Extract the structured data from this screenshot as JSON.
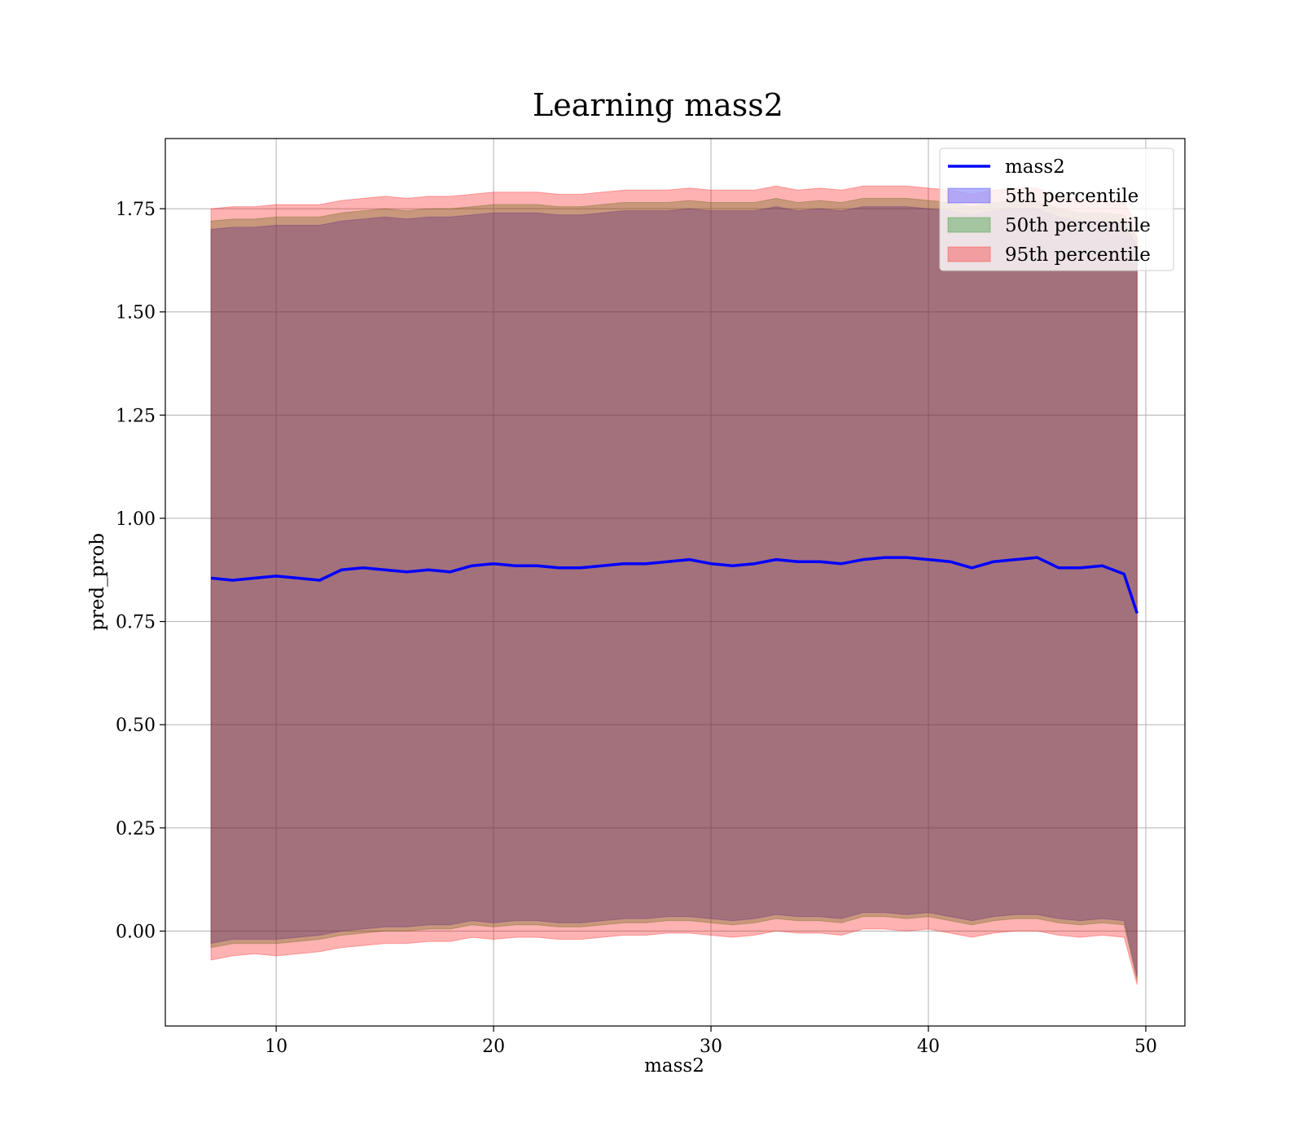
{
  "chart_data": {
    "type": "line",
    "title": "Learning mass2",
    "xlabel": "mass2",
    "ylabel": "pred_prob",
    "xlim": [
      4.9,
      51.8
    ],
    "ylim": [
      -0.23,
      1.92
    ],
    "x_ticks": [
      10,
      20,
      30,
      40,
      50
    ],
    "x_tick_labels": [
      "10",
      "20",
      "30",
      "40",
      "50"
    ],
    "y_ticks": [
      0.0,
      0.25,
      0.5,
      0.75,
      1.0,
      1.25,
      1.5,
      1.75
    ],
    "y_tick_labels": [
      "0.00",
      "0.25",
      "0.50",
      "0.75",
      "1.00",
      "1.25",
      "1.50",
      "1.75"
    ],
    "grid": true,
    "legend_position": "upper right",
    "x": [
      7.0,
      8.0,
      9.0,
      10.0,
      11.0,
      12.0,
      13.0,
      14.0,
      15.0,
      16.0,
      17.0,
      18.0,
      19.0,
      20.0,
      21.0,
      22.0,
      23.0,
      24.0,
      25.0,
      26.0,
      27.0,
      28.0,
      29.0,
      30.0,
      31.0,
      32.0,
      33.0,
      34.0,
      35.0,
      36.0,
      37.0,
      38.0,
      39.0,
      40.0,
      41.0,
      42.0,
      43.0,
      44.0,
      45.0,
      46.0,
      47.0,
      48.0,
      49.0,
      49.6
    ],
    "series": [
      {
        "name": "mass2",
        "kind": "line",
        "color": "#0000ff",
        "values": [
          0.855,
          0.85,
          0.855,
          0.86,
          0.855,
          0.85,
          0.875,
          0.88,
          0.875,
          0.87,
          0.875,
          0.87,
          0.885,
          0.89,
          0.885,
          0.885,
          0.88,
          0.88,
          0.885,
          0.89,
          0.89,
          0.895,
          0.9,
          0.89,
          0.885,
          0.89,
          0.9,
          0.895,
          0.895,
          0.89,
          0.9,
          0.905,
          0.905,
          0.9,
          0.895,
          0.88,
          0.895,
          0.9,
          0.905,
          0.88,
          0.88,
          0.885,
          0.865,
          0.77
        ]
      },
      {
        "name": "5th percentile",
        "kind": "band",
        "color": "#0000ff",
        "lower": [
          -0.03,
          -0.02,
          -0.02,
          -0.02,
          -0.015,
          -0.01,
          0.0,
          0.005,
          0.01,
          0.01,
          0.015,
          0.015,
          0.025,
          0.02,
          0.025,
          0.025,
          0.02,
          0.02,
          0.025,
          0.03,
          0.03,
          0.035,
          0.035,
          0.03,
          0.025,
          0.03,
          0.04,
          0.035,
          0.035,
          0.03,
          0.045,
          0.045,
          0.04,
          0.045,
          0.035,
          0.025,
          0.035,
          0.04,
          0.04,
          0.03,
          0.025,
          0.03,
          0.025,
          -0.11
        ],
        "upper": [
          1.7,
          1.705,
          1.705,
          1.71,
          1.71,
          1.71,
          1.72,
          1.725,
          1.73,
          1.725,
          1.73,
          1.73,
          1.735,
          1.74,
          1.74,
          1.74,
          1.735,
          1.735,
          1.74,
          1.745,
          1.745,
          1.745,
          1.75,
          1.745,
          1.745,
          1.745,
          1.755,
          1.745,
          1.75,
          1.745,
          1.755,
          1.755,
          1.755,
          1.75,
          1.745,
          1.735,
          1.745,
          1.75,
          1.75,
          1.73,
          1.72,
          1.72,
          1.715,
          1.66
        ]
      },
      {
        "name": "50th percentile",
        "kind": "band",
        "color": "#008000",
        "lower": [
          -0.04,
          -0.03,
          -0.03,
          -0.03,
          -0.025,
          -0.02,
          -0.01,
          -0.005,
          0.0,
          0.0,
          0.005,
          0.005,
          0.015,
          0.01,
          0.015,
          0.015,
          0.01,
          0.01,
          0.015,
          0.02,
          0.02,
          0.025,
          0.025,
          0.02,
          0.015,
          0.02,
          0.03,
          0.025,
          0.025,
          0.02,
          0.035,
          0.035,
          0.03,
          0.035,
          0.025,
          0.015,
          0.025,
          0.03,
          0.03,
          0.02,
          0.015,
          0.02,
          0.015,
          -0.12
        ],
        "upper": [
          1.72,
          1.725,
          1.725,
          1.73,
          1.73,
          1.73,
          1.74,
          1.745,
          1.75,
          1.745,
          1.75,
          1.75,
          1.755,
          1.76,
          1.76,
          1.76,
          1.755,
          1.755,
          1.76,
          1.765,
          1.765,
          1.765,
          1.77,
          1.765,
          1.765,
          1.765,
          1.775,
          1.765,
          1.77,
          1.765,
          1.775,
          1.775,
          1.775,
          1.77,
          1.765,
          1.755,
          1.765,
          1.77,
          1.77,
          1.75,
          1.74,
          1.74,
          1.735,
          1.68
        ]
      },
      {
        "name": "95th percentile",
        "kind": "band",
        "color": "#ff0000",
        "lower": [
          -0.07,
          -0.06,
          -0.055,
          -0.06,
          -0.055,
          -0.05,
          -0.04,
          -0.035,
          -0.03,
          -0.03,
          -0.025,
          -0.025,
          -0.015,
          -0.02,
          -0.015,
          -0.015,
          -0.02,
          -0.02,
          -0.015,
          -0.01,
          -0.01,
          -0.005,
          -0.005,
          -0.01,
          -0.015,
          -0.01,
          0.0,
          -0.005,
          -0.005,
          -0.01,
          0.005,
          0.005,
          0.0,
          0.005,
          -0.005,
          -0.015,
          -0.005,
          0.0,
          0.0,
          -0.01,
          -0.015,
          -0.01,
          -0.015,
          -0.13
        ],
        "upper": [
          1.75,
          1.755,
          1.755,
          1.76,
          1.76,
          1.76,
          1.77,
          1.775,
          1.78,
          1.775,
          1.78,
          1.78,
          1.785,
          1.79,
          1.79,
          1.79,
          1.785,
          1.785,
          1.79,
          1.795,
          1.795,
          1.795,
          1.8,
          1.795,
          1.795,
          1.795,
          1.805,
          1.795,
          1.8,
          1.795,
          1.805,
          1.805,
          1.805,
          1.8,
          1.795,
          1.785,
          1.795,
          1.8,
          1.8,
          1.78,
          1.77,
          1.77,
          1.765,
          1.71
        ]
      }
    ]
  }
}
